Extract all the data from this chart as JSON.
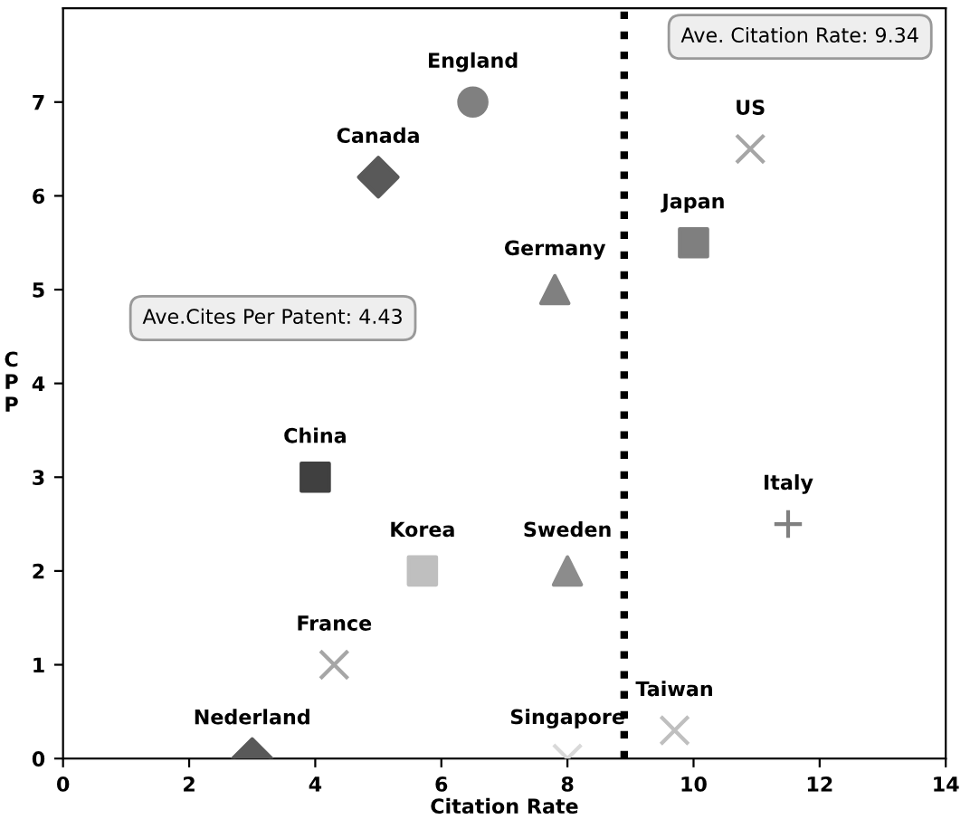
{
  "chart_data": {
    "type": "scatter",
    "xlabel": "Citation Rate",
    "ylabel": "CPP",
    "xlim": [
      0,
      14
    ],
    "ylim": [
      0,
      8
    ],
    "xticks": [
      0,
      2,
      4,
      6,
      8,
      10,
      12,
      14
    ],
    "yticks": [
      0,
      1,
      2,
      3,
      4,
      5,
      6,
      7
    ],
    "grid": false,
    "legend": false,
    "series": [
      {
        "name": "England",
        "color": "#808080",
        "marker": "circle",
        "x": [
          6.5
        ],
        "values": [
          7
        ]
      },
      {
        "name": "Canada",
        "color": "#595959",
        "marker": "diamond",
        "x": [
          5
        ],
        "values": [
          6.2
        ]
      },
      {
        "name": "US",
        "color": "#a6a6a6",
        "marker": "cross",
        "x": [
          10.9
        ],
        "values": [
          6.5
        ]
      },
      {
        "name": "Japan",
        "color": "#7f7f7f",
        "marker": "square",
        "x": [
          10
        ],
        "values": [
          5.5
        ]
      },
      {
        "name": "Germany",
        "color": "#808080",
        "marker": "triangle",
        "x": [
          7.8
        ],
        "values": [
          5
        ]
      },
      {
        "name": "China",
        "color": "#404040",
        "marker": "square",
        "x": [
          4
        ],
        "values": [
          3
        ]
      },
      {
        "name": "Italy",
        "color": "#808080",
        "marker": "plus",
        "x": [
          11.5
        ],
        "values": [
          2.5
        ]
      },
      {
        "name": "Korea",
        "color": "#bfbfbf",
        "marker": "square",
        "x": [
          5.7
        ],
        "values": [
          2
        ]
      },
      {
        "name": "Sweden",
        "color": "#8c8c8c",
        "marker": "triangle",
        "x": [
          8
        ],
        "values": [
          2
        ]
      },
      {
        "name": "France",
        "color": "#a6a6a6",
        "marker": "cross",
        "x": [
          4.3
        ],
        "values": [
          1
        ]
      },
      {
        "name": "Nederland",
        "color": "#595959",
        "marker": "diamond",
        "x": [
          3
        ],
        "values": [
          0
        ]
      },
      {
        "name": "Singapore",
        "color": "#d9d9d9",
        "marker": "cross",
        "x": [
          8
        ],
        "values": [
          0
        ]
      },
      {
        "name": "Taiwan",
        "color": "#bfbfbf",
        "marker": "cross",
        "x": [
          9.7
        ],
        "values": [
          0.3
        ]
      }
    ],
    "ref_lines": [
      {
        "axis": "x",
        "value": 8.9,
        "color": "#000000",
        "line_style": "dotted"
      }
    ],
    "annotations": [
      "Ave. Citation Rate: 9.34",
      "Ave.Cites Per Patent: 4.43"
    ]
  }
}
